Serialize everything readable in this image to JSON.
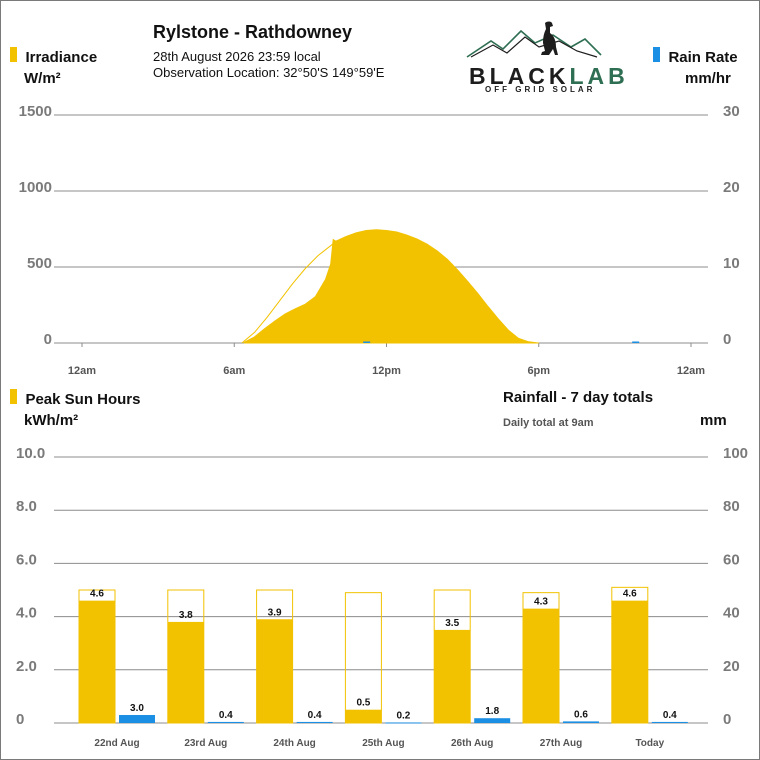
{
  "header": {
    "station": "Rylstone - Rathdowney",
    "datetime": "28th August 2026  23:59 local",
    "location": "Observation Location: 32°50'S 149°59'E"
  },
  "logo": {
    "word_black": "BLACK",
    "word_lab": "LAB",
    "tagline": "OFF GRID SOLAR",
    "icon": "dog-on-mountains-logo"
  },
  "colors": {
    "irradiance": "#f2c200",
    "rain": "#1a8fe3",
    "grid": "#8c8c8c",
    "axis_text": "#7a7a7a"
  },
  "chart_data": [
    {
      "type": "area",
      "legend_left": "Irradiance",
      "unit_left": "W/m²",
      "legend_right": "Rain Rate",
      "unit_right": "mm/hr",
      "y_left_ticks": [
        "0",
        "500",
        "1000",
        "1500"
      ],
      "y_right_ticks": [
        "0",
        "10",
        "20",
        "30"
      ],
      "y_left_range": [
        0,
        1500
      ],
      "y_right_range": [
        0,
        30
      ],
      "x_tick_labels": [
        "12am",
        "6am",
        "12pm",
        "6pm",
        "12am"
      ],
      "x_range_hours": [
        0,
        24
      ],
      "grid": true,
      "irradiance_series": {
        "name": "Irradiance",
        "x_hours": [
          6.4,
          6.8,
          7.2,
          7.6,
          8.0,
          8.4,
          8.8,
          9.2,
          9.6,
          9.8,
          9.9,
          10.0,
          10.4,
          10.8,
          11.2,
          11.6,
          12.0,
          12.4,
          12.8,
          13.2,
          13.6,
          14.0,
          14.4,
          14.8,
          15.2,
          15.6,
          16.0,
          16.4,
          16.8,
          17.2,
          17.6,
          17.9,
          18.0
        ],
        "values": [
          5,
          40,
          95,
          145,
          190,
          225,
          255,
          305,
          420,
          520,
          680,
          670,
          700,
          725,
          740,
          745,
          740,
          730,
          710,
          685,
          650,
          605,
          550,
          480,
          405,
          325,
          240,
          160,
          85,
          30,
          8,
          2,
          0
        ]
      },
      "clear_sky_envelope": {
        "x_hours": [
          6.3,
          6.8,
          7.3,
          7.8,
          8.3,
          8.8,
          9.3,
          9.8,
          10.0
        ],
        "values": [
          0,
          70,
          170,
          280,
          390,
          490,
          575,
          640,
          670
        ]
      },
      "rain_rate_series": {
        "name": "Rain Rate",
        "x_hours": [
          11.2,
          21.8
        ],
        "values": [
          0.2,
          0.2
        ]
      }
    },
    {
      "type": "bar",
      "legend_left": "Peak Sun Hours",
      "unit_left": "kWh/m²",
      "legend_right": "Rainfall - 7 day totals",
      "note_right": "Daily total at 9am",
      "unit_right": "mm",
      "y_left_ticks": [
        "0",
        "2.0",
        "4.0",
        "6.0",
        "8.0",
        "10.0"
      ],
      "y_right_ticks": [
        "0",
        "20",
        "40",
        "60",
        "80",
        "100"
      ],
      "y_left_range": [
        0,
        10
      ],
      "y_right_range": [
        0,
        100
      ],
      "categories": [
        "22nd Aug",
        "23rd Aug",
        "24th Aug",
        "25th Aug",
        "26th Aug",
        "27th Aug",
        "Today"
      ],
      "grid": true,
      "series": [
        {
          "name": "Peak Sun Hours",
          "values": [
            4.6,
            3.8,
            3.9,
            0.5,
            3.5,
            4.3,
            4.6
          ],
          "labels": [
            "4.6",
            "3.8",
            "3.9",
            "0.5",
            "3.5",
            "4.3",
            "4.6"
          ],
          "outline_max": [
            5.0,
            5.0,
            5.0,
            4.9,
            5.0,
            4.9,
            5.1
          ]
        },
        {
          "name": "Rainfall",
          "values": [
            3.0,
            0.4,
            0.4,
            0.2,
            1.8,
            0.6,
            0.4
          ],
          "labels": [
            "3.0",
            "0.4",
            "0.4",
            "0.2",
            "1.8",
            "0.6",
            "0.4"
          ]
        }
      ]
    }
  ]
}
